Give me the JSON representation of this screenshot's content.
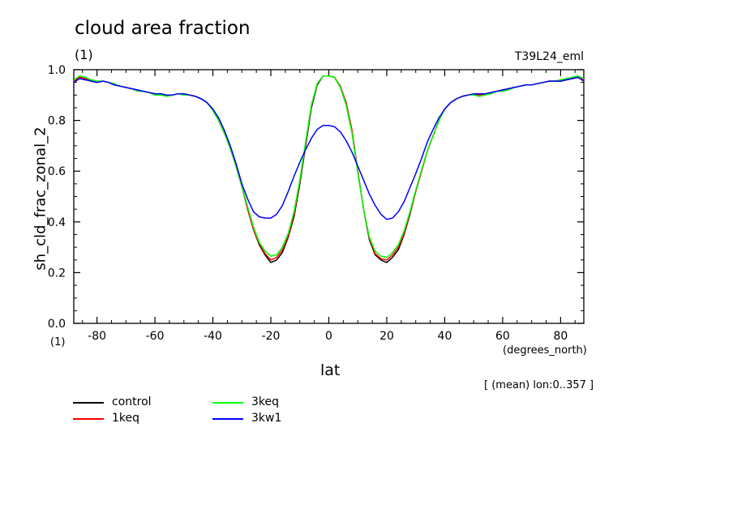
{
  "header": {
    "title": "cloud area fraction",
    "unit_top": "(1)",
    "run_id": "T39L24_eml"
  },
  "footer": {
    "unit_bottom": "(1)",
    "x_unit": "(degrees_north)",
    "mean_note": "[ (mean) lon:0..357 ]"
  },
  "chart_data": {
    "type": "line",
    "title": "cloud area fraction",
    "xlabel": "lat",
    "ylabel": "sh_cld_frac_zonal_2",
    "xlim": [
      -88,
      88
    ],
    "ylim": [
      0,
      1
    ],
    "xticks": [
      -80,
      -60,
      -40,
      -20,
      0,
      20,
      40,
      60,
      80
    ],
    "xtick_labels": [
      "-80",
      "-60",
      "-40",
      "-20",
      "0",
      "20",
      "40",
      "60",
      "80"
    ],
    "yticks": [
      0,
      0.2,
      0.4,
      0.6,
      0.8,
      1
    ],
    "ytick_labels": [
      "0.0",
      "0.2",
      "0.4",
      "0.6",
      "0.8",
      "1.0"
    ],
    "grid": false,
    "legend_position": "bottom-left",
    "x": [
      -88,
      -86,
      -84,
      -82,
      -80,
      -78,
      -76,
      -74,
      -72,
      -70,
      -68,
      -66,
      -64,
      -62,
      -60,
      -58,
      -56,
      -54,
      -52,
      -50,
      -48,
      -46,
      -44,
      -42,
      -40,
      -38,
      -36,
      -34,
      -32,
      -30,
      -28,
      -26,
      -24,
      -22,
      -20,
      -18,
      -16,
      -14,
      -12,
      -10,
      -8,
      -6,
      -4,
      -2,
      0,
      2,
      4,
      6,
      8,
      10,
      12,
      14,
      16,
      18,
      20,
      22,
      24,
      26,
      28,
      30,
      32,
      34,
      36,
      38,
      40,
      42,
      44,
      46,
      48,
      50,
      52,
      54,
      56,
      58,
      60,
      62,
      64,
      66,
      68,
      70,
      72,
      74,
      76,
      78,
      80,
      82,
      84,
      86,
      88
    ],
    "series": [
      {
        "name": "control",
        "color": "#000000",
        "values": [
          0.95,
          0.97,
          0.965,
          0.955,
          0.95,
          0.955,
          0.95,
          0.94,
          0.935,
          0.93,
          0.925,
          0.92,
          0.915,
          0.91,
          0.905,
          0.905,
          0.9,
          0.9,
          0.905,
          0.905,
          0.9,
          0.895,
          0.885,
          0.87,
          0.84,
          0.8,
          0.75,
          0.69,
          0.62,
          0.54,
          0.45,
          0.37,
          0.31,
          0.27,
          0.24,
          0.25,
          0.28,
          0.34,
          0.42,
          0.55,
          0.7,
          0.85,
          0.94,
          0.975,
          0.975,
          0.97,
          0.93,
          0.87,
          0.76,
          0.6,
          0.45,
          0.33,
          0.27,
          0.25,
          0.24,
          0.26,
          0.29,
          0.35,
          0.43,
          0.52,
          0.6,
          0.68,
          0.74,
          0.8,
          0.845,
          0.87,
          0.885,
          0.895,
          0.9,
          0.9,
          0.9,
          0.905,
          0.91,
          0.915,
          0.92,
          0.925,
          0.93,
          0.935,
          0.94,
          0.94,
          0.945,
          0.95,
          0.955,
          0.955,
          0.955,
          0.96,
          0.965,
          0.97,
          0.96
        ]
      },
      {
        "name": "1keq",
        "color": "#ff0000",
        "values": [
          0.955,
          0.97,
          0.965,
          0.955,
          0.95,
          0.955,
          0.95,
          0.94,
          0.935,
          0.93,
          0.925,
          0.92,
          0.915,
          0.91,
          0.905,
          0.905,
          0.9,
          0.9,
          0.905,
          0.905,
          0.9,
          0.895,
          0.885,
          0.87,
          0.84,
          0.8,
          0.75,
          0.69,
          0.62,
          0.54,
          0.45,
          0.37,
          0.315,
          0.275,
          0.25,
          0.26,
          0.29,
          0.345,
          0.43,
          0.56,
          0.71,
          0.86,
          0.945,
          0.975,
          0.975,
          0.97,
          0.935,
          0.87,
          0.76,
          0.6,
          0.45,
          0.335,
          0.275,
          0.255,
          0.25,
          0.27,
          0.3,
          0.355,
          0.435,
          0.52,
          0.6,
          0.68,
          0.74,
          0.8,
          0.845,
          0.87,
          0.885,
          0.895,
          0.9,
          0.9,
          0.9,
          0.905,
          0.91,
          0.915,
          0.92,
          0.925,
          0.93,
          0.935,
          0.94,
          0.94,
          0.945,
          0.95,
          0.955,
          0.955,
          0.955,
          0.96,
          0.965,
          0.97,
          0.96
        ]
      },
      {
        "name": "3keq",
        "color": "#00ff00",
        "values": [
          0.96,
          0.975,
          0.97,
          0.96,
          0.955,
          0.955,
          0.95,
          0.945,
          0.935,
          0.93,
          0.925,
          0.915,
          0.915,
          0.91,
          0.9,
          0.9,
          0.895,
          0.9,
          0.905,
          0.9,
          0.9,
          0.895,
          0.885,
          0.87,
          0.84,
          0.8,
          0.75,
          0.69,
          0.62,
          0.54,
          0.46,
          0.38,
          0.32,
          0.285,
          0.265,
          0.27,
          0.3,
          0.355,
          0.44,
          0.565,
          0.715,
          0.86,
          0.945,
          0.975,
          0.975,
          0.97,
          0.93,
          0.86,
          0.75,
          0.595,
          0.45,
          0.34,
          0.285,
          0.265,
          0.26,
          0.28,
          0.31,
          0.365,
          0.44,
          0.525,
          0.605,
          0.68,
          0.74,
          0.8,
          0.845,
          0.87,
          0.885,
          0.895,
          0.9,
          0.9,
          0.895,
          0.9,
          0.905,
          0.915,
          0.915,
          0.92,
          0.93,
          0.935,
          0.94,
          0.94,
          0.945,
          0.95,
          0.955,
          0.955,
          0.96,
          0.965,
          0.97,
          0.975,
          0.965
        ]
      },
      {
        "name": "3kw1",
        "color": "#0000ff",
        "values": [
          0.95,
          0.965,
          0.96,
          0.955,
          0.95,
          0.955,
          0.95,
          0.94,
          0.935,
          0.93,
          0.925,
          0.92,
          0.915,
          0.91,
          0.905,
          0.905,
          0.9,
          0.9,
          0.905,
          0.905,
          0.9,
          0.895,
          0.885,
          0.87,
          0.845,
          0.81,
          0.76,
          0.7,
          0.63,
          0.55,
          0.49,
          0.44,
          0.42,
          0.415,
          0.415,
          0.43,
          0.465,
          0.52,
          0.58,
          0.635,
          0.685,
          0.73,
          0.765,
          0.78,
          0.78,
          0.775,
          0.755,
          0.72,
          0.675,
          0.62,
          0.565,
          0.51,
          0.465,
          0.43,
          0.41,
          0.415,
          0.44,
          0.48,
          0.535,
          0.59,
          0.65,
          0.715,
          0.765,
          0.81,
          0.845,
          0.87,
          0.885,
          0.895,
          0.9,
          0.905,
          0.905,
          0.905,
          0.91,
          0.915,
          0.92,
          0.925,
          0.93,
          0.935,
          0.94,
          0.94,
          0.945,
          0.95,
          0.955,
          0.955,
          0.955,
          0.96,
          0.965,
          0.97,
          0.955
        ]
      }
    ]
  }
}
